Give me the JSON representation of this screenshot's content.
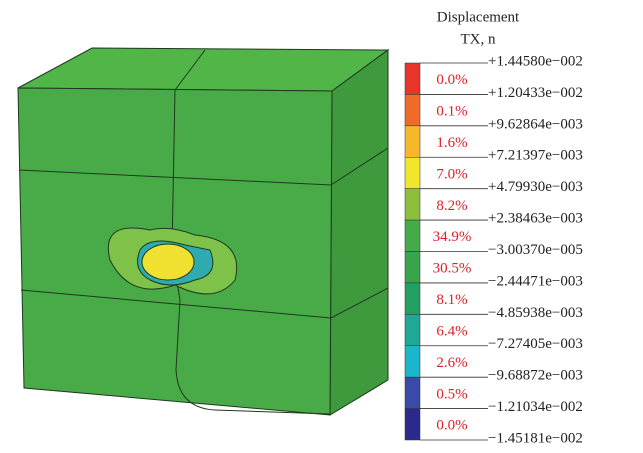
{
  "legend": {
    "title": "Displacement",
    "subtitle": "TX, n",
    "bands": [
      {
        "color": "#e8342a",
        "percent": "0.0%"
      },
      {
        "color": "#f06a28",
        "percent": "0.1%"
      },
      {
        "color": "#f5b82a",
        "percent": "1.6%"
      },
      {
        "color": "#f0e62c",
        "percent": "7.0%"
      },
      {
        "color": "#8cbf3c",
        "percent": "8.2%"
      },
      {
        "color": "#45aa48",
        "percent": "34.9%"
      },
      {
        "color": "#38a54c",
        "percent": "30.5%"
      },
      {
        "color": "#22a062",
        "percent": "8.1%"
      },
      {
        "color": "#1ea896",
        "percent": "6.4%"
      },
      {
        "color": "#19b6cc",
        "percent": "2.6%"
      },
      {
        "color": "#3a4aa8",
        "percent": "0.5%"
      },
      {
        "color": "#2a2a8a",
        "percent": "0.0%"
      }
    ],
    "boundaries": [
      "+1.44580e−002",
      "+1.20433e−002",
      "+9.62864e−003",
      "+7.21397e−003",
      "+4.79930e−003",
      "+2.38463e−003",
      "−3.00370e−005",
      "−2.44471e−003",
      "−4.85938e−003",
      "−7.27405e−003",
      "−9.68872e−003",
      "−1.21034e−002",
      "−1.45181e−002"
    ]
  }
}
